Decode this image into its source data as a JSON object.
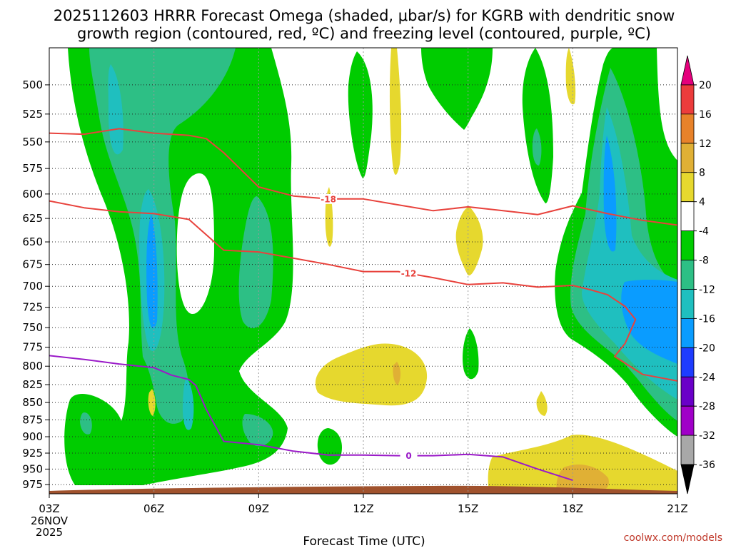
{
  "chart_data": {
    "type": "heatmap",
    "title": "2025112603 HRRR Forecast Omega (shaded, μbar/s) for KGRB with dendritic snow",
    "subtitle": "growth region (contoured, red, ºC) and freezing level (contoured, purple, ºC)",
    "xlabel": "Forecast Time (UTC)",
    "ylabel": "",
    "x_ticks": [
      "03Z",
      "06Z",
      "09Z",
      "12Z",
      "15Z",
      "18Z",
      "21Z"
    ],
    "x_first_sublabels": [
      "26NOV",
      "2025"
    ],
    "x_hours": [
      3,
      6,
      9,
      12,
      15,
      18,
      21
    ],
    "xlim": [
      3,
      21
    ],
    "y_ticks": [
      "500",
      "525",
      "550",
      "575",
      "600",
      "625",
      "650",
      "675",
      "700",
      "725",
      "750",
      "775",
      "800",
      "825",
      "850",
      "875",
      "900",
      "925",
      "950",
      "975"
    ],
    "y_values": [
      500,
      525,
      550,
      575,
      600,
      625,
      650,
      675,
      700,
      725,
      750,
      775,
      800,
      825,
      850,
      875,
      900,
      925,
      950,
      975
    ],
    "ylim": [
      470,
      990
    ],
    "y_scale": "log",
    "grid": true,
    "colorbar_levels": [
      "20",
      "16",
      "12",
      "8",
      "4",
      "-4",
      "-8",
      "-12",
      "-16",
      "-20",
      "-24",
      "-28",
      "-32",
      "-36"
    ],
    "colorbar_values": [
      20,
      16,
      12,
      8,
      4,
      -4,
      -8,
      -12,
      -16,
      -20,
      -24,
      -28,
      -32,
      -36
    ],
    "colorbar_colors": [
      "#e4007c",
      "#ec3c3c",
      "#e8822a",
      "#e0b035",
      "#e6d82e",
      "#ffffff",
      "#00cc00",
      "#2dbf85",
      "#1fbfbf",
      "#0a9cff",
      "#1e3cff",
      "#6a00c8",
      "#a000c8",
      "#a8a8a8",
      "#000000"
    ],
    "contour_labels": [
      {
        "text": "-18",
        "series": "dendritic_top"
      },
      {
        "text": "-12",
        "series": "dendritic_bottom"
      },
      {
        "text": "0",
        "series": "freezing_level"
      }
    ],
    "series": [
      {
        "key": "dendritic_top",
        "color": "#e8423c",
        "x": [
          3,
          4,
          5,
          6,
          7,
          7.5,
          8,
          9,
          10,
          11,
          12,
          13,
          14,
          15,
          16,
          17,
          18,
          19,
          20,
          21
        ],
        "y": [
          542,
          543,
          538,
          542,
          544,
          547,
          560,
          593,
          602,
          605,
          605,
          611,
          617,
          613,
          617,
          621,
          612,
          620,
          627,
          632
        ]
      },
      {
        "key": "dendritic_bottom",
        "color": "#e8423c",
        "x": [
          3,
          4,
          5,
          6,
          7,
          8,
          9,
          10,
          11,
          12,
          13,
          14,
          15,
          16,
          17,
          18,
          18.5,
          19,
          19.5,
          19.8,
          19.5,
          19.2,
          20,
          21
        ],
        "y": [
          607,
          614,
          618,
          620,
          626,
          659,
          661,
          668,
          675,
          683,
          683,
          690,
          698,
          696,
          701,
          699,
          704,
          710,
          724,
          740,
          770,
          787,
          811,
          820
        ]
      },
      {
        "key": "freezing_level",
        "color": "#9a1ac8",
        "x": [
          3,
          4,
          5,
          6,
          6.5,
          7,
          7.2,
          7.5,
          8,
          9,
          10,
          11,
          12,
          13,
          14,
          15,
          16,
          17,
          18
        ],
        "y": [
          786,
          791,
          797,
          802,
          812,
          818,
          826,
          860,
          907,
          912,
          922,
          928,
          928,
          929,
          929,
          927,
          931,
          950,
          968
        ]
      }
    ]
  },
  "credit": "coolwx.com/models"
}
